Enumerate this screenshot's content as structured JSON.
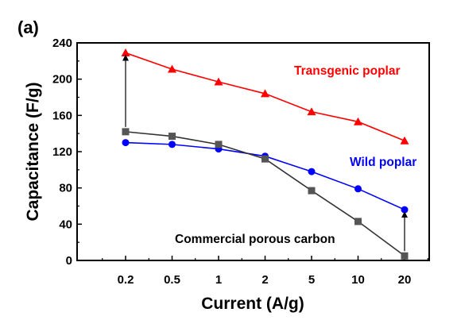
{
  "chart_data": {
    "type": "line",
    "panel_label": "(a)",
    "xlabel": "Current (A/g)",
    "ylabel": "Capacitance (F/g)",
    "categories": [
      "0.2",
      "0.5",
      "1",
      "2",
      "5",
      "10",
      "20"
    ],
    "ylim": [
      0,
      240
    ],
    "yticks": [
      "0",
      "40",
      "80",
      "120",
      "160",
      "200",
      "240"
    ],
    "grid": false,
    "series": [
      {
        "name": "Transgenic poplar",
        "color": "#ff0000",
        "marker": "triangle",
        "values": [
          229,
          211,
          197,
          184,
          164,
          153,
          132
        ]
      },
      {
        "name": "Wild poplar",
        "color": "#0000ff",
        "marker": "circle",
        "values": [
          130,
          128,
          123,
          115,
          98,
          79,
          56
        ]
      },
      {
        "name": "Commercial porous carbon",
        "color": "#000000",
        "marker_color": "#555555",
        "line_color": "#333333",
        "marker": "square",
        "values": [
          142,
          137,
          128,
          112,
          77,
          43,
          5
        ]
      }
    ],
    "annotations": [
      {
        "type": "arrow",
        "category": "0.2",
        "from": 142,
        "to": 229
      },
      {
        "type": "arrow",
        "category": "20",
        "from": 5,
        "to": 56
      }
    ]
  }
}
